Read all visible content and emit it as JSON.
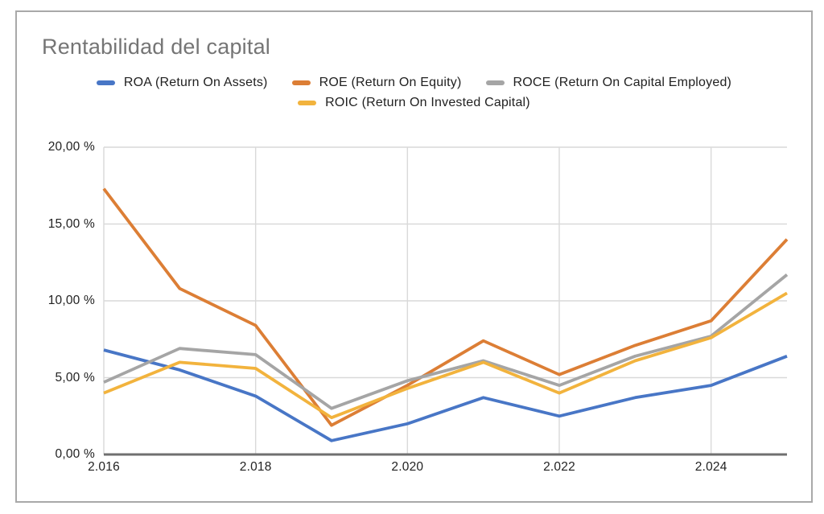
{
  "chart": {
    "title": "Rentabilidad del capital"
  },
  "chart_data": {
    "type": "line",
    "title": "Rentabilidad del capital",
    "x": [
      2016,
      2017,
      2018,
      2019,
      2020,
      2021,
      2022,
      2023,
      2024,
      2025
    ],
    "xlim": [
      2016,
      2025
    ],
    "ylim": [
      0,
      20
    ],
    "unit": "%",
    "grid": true,
    "legend_position": "top",
    "grid_color": "#d9d9d9",
    "axis_color": "#6f6f6f",
    "x_ticks": [
      {
        "value": 2016,
        "label": "2.016"
      },
      {
        "value": 2018,
        "label": "2.018"
      },
      {
        "value": 2020,
        "label": "2.020"
      },
      {
        "value": 2022,
        "label": "2.022"
      },
      {
        "value": 2024,
        "label": "2.024"
      }
    ],
    "y_ticks": [
      {
        "value": 0,
        "label": "0,00 %"
      },
      {
        "value": 5,
        "label": "5,00 %"
      },
      {
        "value": 10,
        "label": "10,00 %"
      },
      {
        "value": 15,
        "label": "15,00 %"
      },
      {
        "value": 20,
        "label": "20,00 %"
      }
    ],
    "series": [
      {
        "label": "ROA (Return On Assets)",
        "color": "#4876c6",
        "values": [
          6.8,
          5.5,
          3.8,
          0.9,
          2.0,
          3.7,
          2.5,
          3.7,
          4.5,
          6.4
        ]
      },
      {
        "label": "ROE (Return On Equity)",
        "color": "#dc7e35",
        "values": [
          17.3,
          10.8,
          8.4,
          1.9,
          4.5,
          7.4,
          5.2,
          7.1,
          8.7,
          14.0
        ]
      },
      {
        "label": "ROCE (Return On Capital Employed)",
        "color": "#a5a5a5",
        "values": [
          4.7,
          6.9,
          6.5,
          3.0,
          4.8,
          6.1,
          4.5,
          6.4,
          7.7,
          11.7
        ]
      },
      {
        "label": "ROIC (Return On Invested Capital)",
        "color": "#f2b33d",
        "values": [
          4.0,
          6.0,
          5.6,
          2.4,
          4.3,
          6.0,
          4.0,
          6.1,
          7.6,
          10.5
        ]
      }
    ]
  }
}
